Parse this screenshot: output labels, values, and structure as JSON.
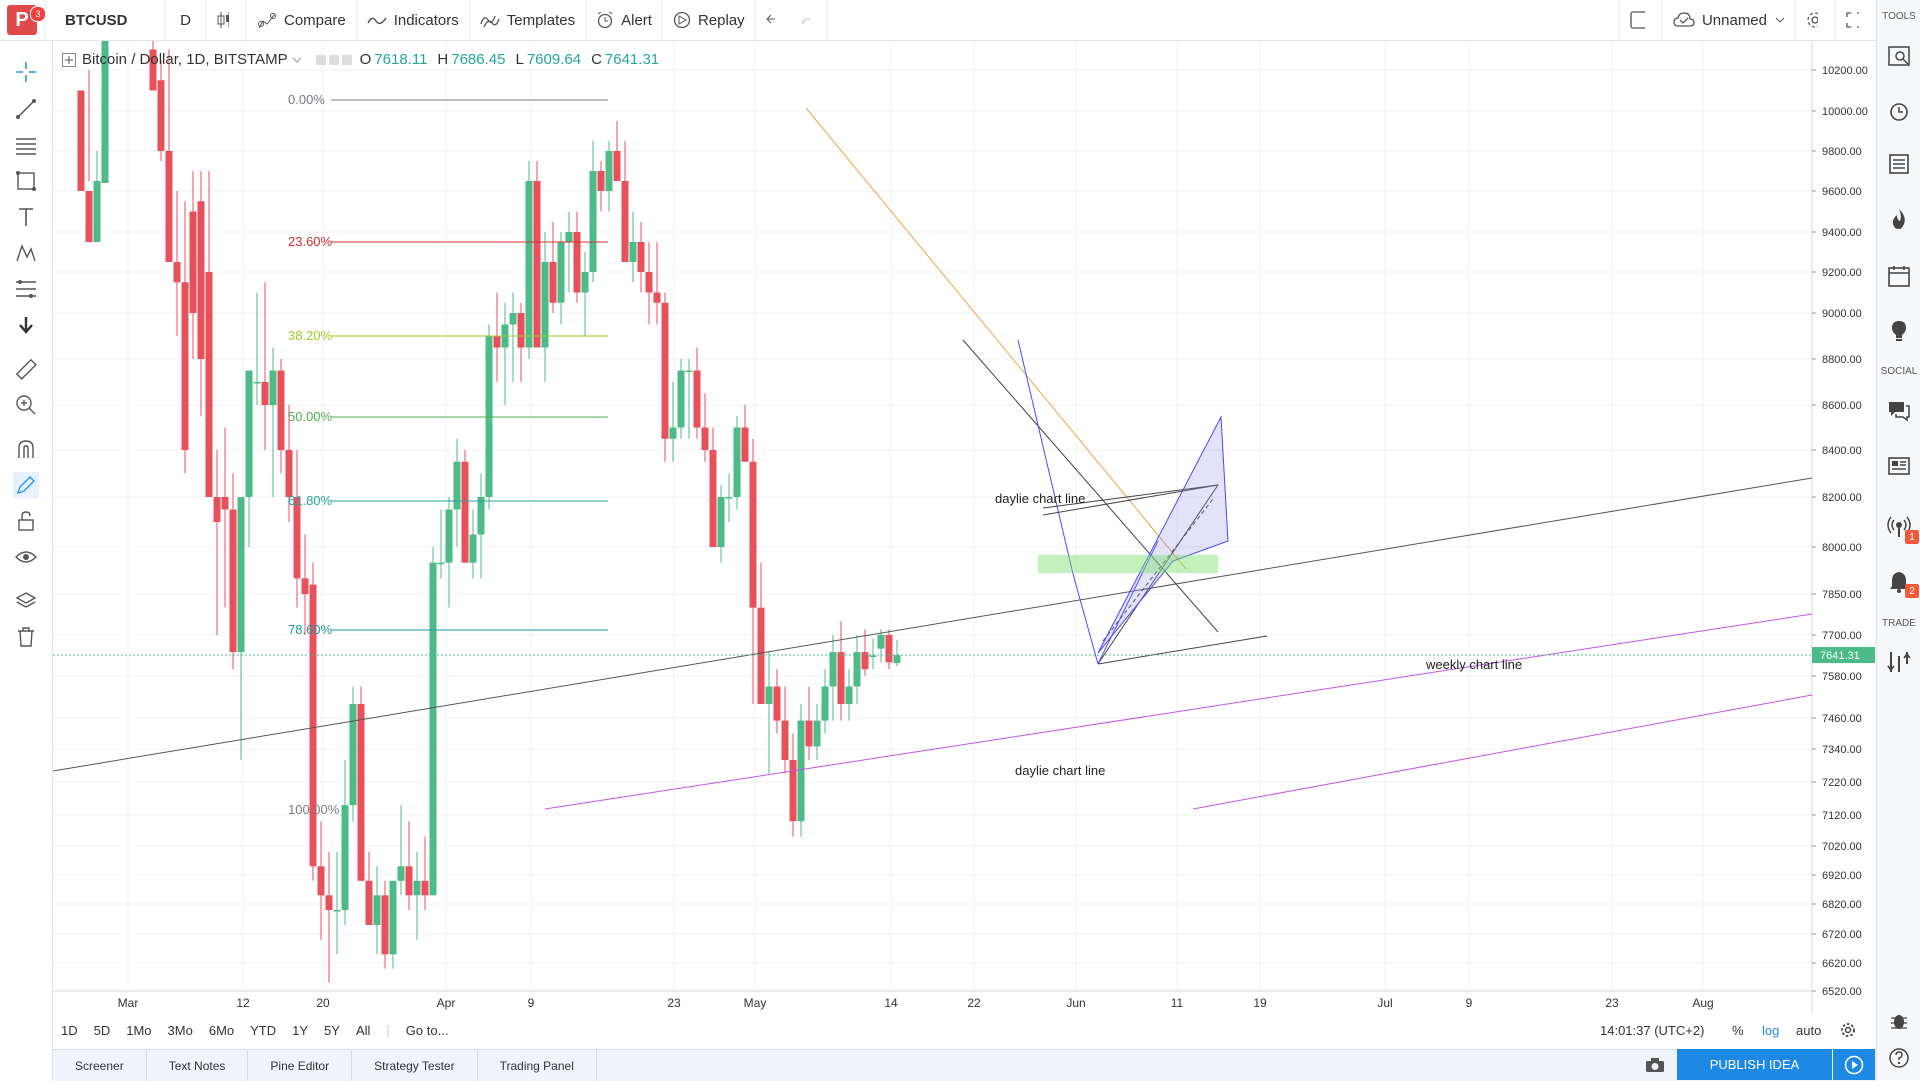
{
  "topbar": {
    "symbol": "BTCUSD",
    "interval": "D",
    "compare": "Compare",
    "indicators": "Indicators",
    "templates": "Templates",
    "alert": "Alert",
    "replay": "Replay",
    "layout_name": "Unnamed",
    "logo_letter": "P",
    "logo_badge": "3"
  },
  "legend": {
    "title": "Bitcoin / Dollar, 1D, BITSTAMP",
    "o_label": "O",
    "o": "7618.11",
    "h_label": "H",
    "h": "7686.45",
    "l_label": "L",
    "l": "7609.64",
    "c_label": "C",
    "c": "7641.31"
  },
  "right_panel": {
    "tools_label": "TOOLS",
    "social_label": "SOCIAL",
    "trade_label": "TRADE",
    "badge_signals": "1",
    "badge_notifications": "2"
  },
  "price_axis": [
    "10200.00",
    "10000.00",
    "9800.00",
    "9600.00",
    "9400.00",
    "9200.00",
    "9000.00",
    "8800.00",
    "8600.00",
    "8400.00",
    "8200.00",
    "8000.00",
    "7850.00",
    "7700.00",
    "7580.00",
    "7460.00",
    "7340.00",
    "7220.00",
    "7120.00",
    "7020.00",
    "6920.00",
    "6820.00",
    "6720.00",
    "6620.00",
    "6520.00"
  ],
  "current_price": "7641.31",
  "time_axis": [
    "Mar",
    "12",
    "20",
    "Apr",
    "9",
    "23",
    "May",
    "14",
    "22",
    "Jun",
    "11",
    "19",
    "Jul",
    "9",
    "23",
    "Aug"
  ],
  "fib_levels": [
    {
      "label": "0.00%",
      "color": "#787b86"
    },
    {
      "label": "23.60%",
      "color": "#d32f2f"
    },
    {
      "label": "38.20%",
      "color": "#9ccc22"
    },
    {
      "label": "50.00%",
      "color": "#4caf50"
    },
    {
      "label": "61.80%",
      "color": "#26a69a"
    },
    {
      "label": "78.60%",
      "color": "#2196a3"
    },
    {
      "label": "100.00%",
      "color": "#787b86"
    }
  ],
  "annotations": {
    "daylie_upper": "daylie chart line",
    "daylie_lower": "daylie chart line",
    "weekly": "weekly chart line"
  },
  "ranges": [
    "1D",
    "5D",
    "1Mo",
    "3Mo",
    "6Mo",
    "YTD",
    "1Y",
    "5Y",
    "All"
  ],
  "goto": "Go to...",
  "clock": "14:01:37 (UTC+2)",
  "scale": {
    "percent": "%",
    "log": "log",
    "auto": "auto"
  },
  "tabs": [
    "Screener",
    "Text Notes",
    "Pine Editor",
    "Strategy Tester",
    "Trading Panel"
  ],
  "publish": "PUBLISH IDEA",
  "colors": {
    "up": "#4cbb87",
    "down": "#e8505b",
    "accent": "#1e88e5"
  }
}
